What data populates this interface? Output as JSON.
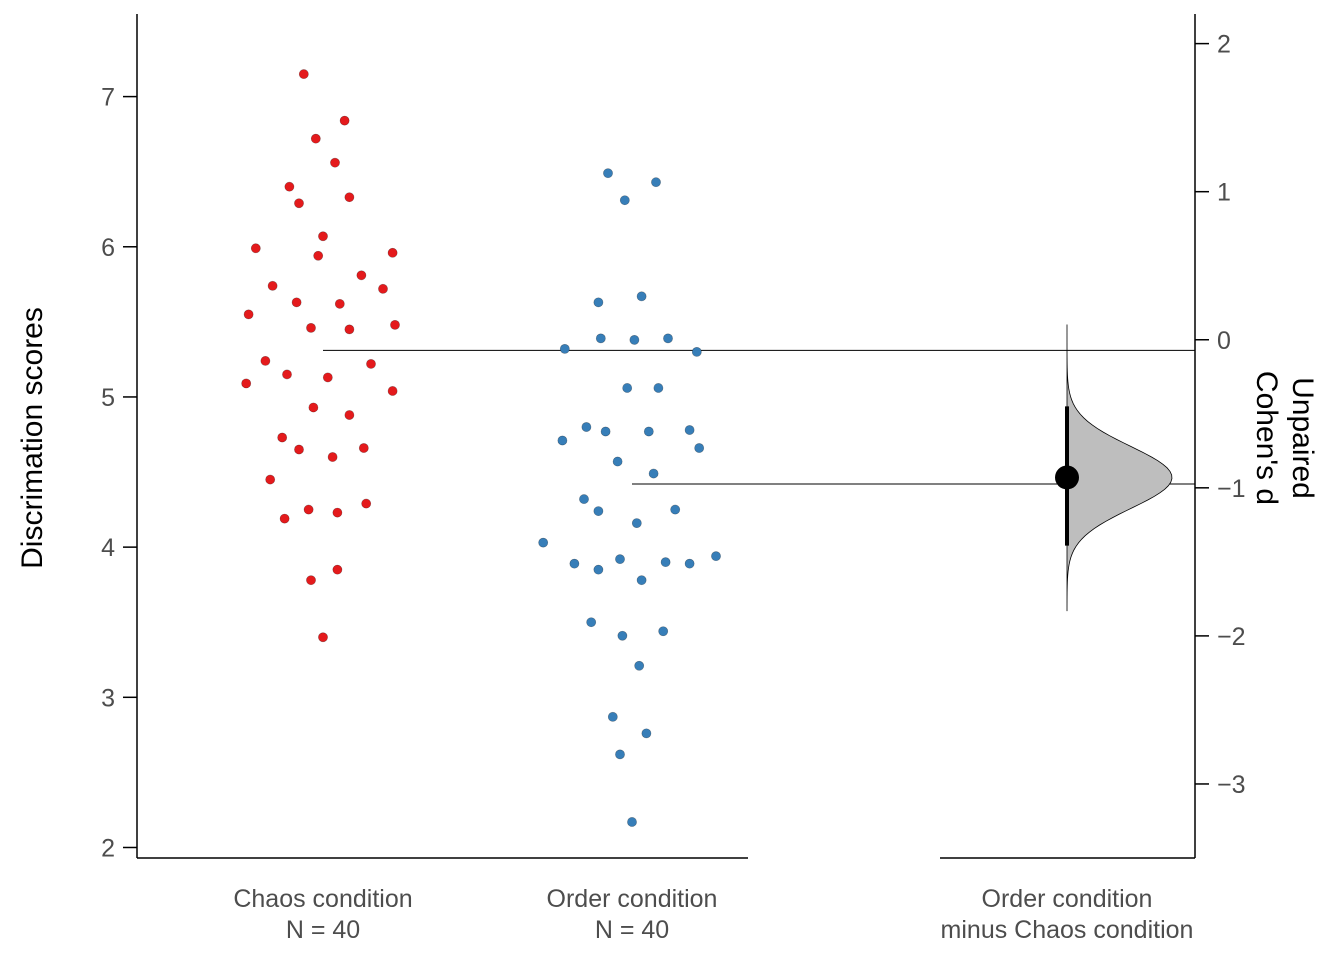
{
  "chart_data": {
    "type": "scatter",
    "subtype": "estimation-plot",
    "title": "",
    "ylabel": "Discrimation scores",
    "y2label": [
      "Unpaired",
      "Cohen's d"
    ],
    "ylim": [
      1.93,
      7.55
    ],
    "yticks": [
      2,
      3,
      4,
      5,
      6,
      7
    ],
    "y2lim": [
      -3.5,
      2.2
    ],
    "y2ticks": [
      -3,
      -2,
      -1,
      0,
      1,
      2
    ],
    "grid": false,
    "groups": [
      {
        "name": "Chaos condition",
        "n_label": "N = 40",
        "color": "#e41a1c",
        "mean": 5.31,
        "points": [
          {
            "dx": -0.08,
            "y": 7.15
          },
          {
            "dx": 0.09,
            "y": 6.84
          },
          {
            "dx": -0.03,
            "y": 6.72
          },
          {
            "dx": 0.05,
            "y": 6.56
          },
          {
            "dx": -0.14,
            "y": 6.4
          },
          {
            "dx": 0.11,
            "y": 6.33
          },
          {
            "dx": -0.1,
            "y": 6.29
          },
          {
            "dx": 0.0,
            "y": 6.07
          },
          {
            "dx": -0.28,
            "y": 5.99
          },
          {
            "dx": 0.29,
            "y": 5.96
          },
          {
            "dx": -0.02,
            "y": 5.94
          },
          {
            "dx": 0.16,
            "y": 5.81
          },
          {
            "dx": -0.21,
            "y": 5.74
          },
          {
            "dx": 0.25,
            "y": 5.72
          },
          {
            "dx": -0.11,
            "y": 5.63
          },
          {
            "dx": 0.07,
            "y": 5.62
          },
          {
            "dx": -0.31,
            "y": 5.55
          },
          {
            "dx": 0.3,
            "y": 5.48
          },
          {
            "dx": -0.05,
            "y": 5.46
          },
          {
            "dx": 0.11,
            "y": 5.45
          },
          {
            "dx": -0.24,
            "y": 5.24
          },
          {
            "dx": 0.2,
            "y": 5.22
          },
          {
            "dx": -0.15,
            "y": 5.15
          },
          {
            "dx": 0.02,
            "y": 5.13
          },
          {
            "dx": -0.32,
            "y": 5.09
          },
          {
            "dx": 0.29,
            "y": 5.04
          },
          {
            "dx": -0.04,
            "y": 4.93
          },
          {
            "dx": 0.11,
            "y": 4.88
          },
          {
            "dx": -0.17,
            "y": 4.73
          },
          {
            "dx": 0.17,
            "y": 4.66
          },
          {
            "dx": -0.1,
            "y": 4.65
          },
          {
            "dx": 0.04,
            "y": 4.6
          },
          {
            "dx": -0.22,
            "y": 4.45
          },
          {
            "dx": 0.18,
            "y": 4.29
          },
          {
            "dx": -0.06,
            "y": 4.25
          },
          {
            "dx": 0.06,
            "y": 4.23
          },
          {
            "dx": -0.16,
            "y": 4.19
          },
          {
            "dx": -0.05,
            "y": 3.78
          },
          {
            "dx": 0.06,
            "y": 3.85
          },
          {
            "dx": 0.0,
            "y": 3.4
          }
        ]
      },
      {
        "name": "Order condition",
        "n_label": "N = 40",
        "color": "#377eb8",
        "mean": 4.42,
        "points": [
          {
            "dx": -0.1,
            "y": 6.49
          },
          {
            "dx": 0.1,
            "y": 6.43
          },
          {
            "dx": -0.03,
            "y": 6.31
          },
          {
            "dx": 0.04,
            "y": 5.67
          },
          {
            "dx": -0.14,
            "y": 5.63
          },
          {
            "dx": -0.13,
            "y": 5.39
          },
          {
            "dx": 0.01,
            "y": 5.38
          },
          {
            "dx": 0.15,
            "y": 5.39
          },
          {
            "dx": -0.28,
            "y": 5.32
          },
          {
            "dx": 0.27,
            "y": 5.3
          },
          {
            "dx": -0.02,
            "y": 5.06
          },
          {
            "dx": 0.11,
            "y": 5.06
          },
          {
            "dx": -0.19,
            "y": 4.8
          },
          {
            "dx": -0.11,
            "y": 4.77
          },
          {
            "dx": 0.07,
            "y": 4.77
          },
          {
            "dx": 0.24,
            "y": 4.78
          },
          {
            "dx": -0.29,
            "y": 4.71
          },
          {
            "dx": 0.28,
            "y": 4.66
          },
          {
            "dx": -0.06,
            "y": 4.57
          },
          {
            "dx": 0.09,
            "y": 4.49
          },
          {
            "dx": -0.2,
            "y": 4.32
          },
          {
            "dx": 0.18,
            "y": 4.25
          },
          {
            "dx": -0.14,
            "y": 4.24
          },
          {
            "dx": 0.02,
            "y": 4.16
          },
          {
            "dx": -0.37,
            "y": 4.03
          },
          {
            "dx": 0.35,
            "y": 3.94
          },
          {
            "dx": -0.05,
            "y": 3.92
          },
          {
            "dx": 0.14,
            "y": 3.9
          },
          {
            "dx": 0.24,
            "y": 3.89
          },
          {
            "dx": -0.24,
            "y": 3.89
          },
          {
            "dx": -0.14,
            "y": 3.85
          },
          {
            "dx": 0.04,
            "y": 3.78
          },
          {
            "dx": -0.17,
            "y": 3.5
          },
          {
            "dx": 0.13,
            "y": 3.44
          },
          {
            "dx": -0.04,
            "y": 3.41
          },
          {
            "dx": 0.03,
            "y": 3.21
          },
          {
            "dx": -0.08,
            "y": 2.87
          },
          {
            "dx": 0.06,
            "y": 2.76
          },
          {
            "dx": -0.05,
            "y": 2.62
          },
          {
            "dx": 0.0,
            "y": 2.17
          }
        ]
      }
    ],
    "delta": {
      "name": "Order condition\nminus Chaos condition",
      "label_line1": "Order condition",
      "label_line2": "minus Chaos condition",
      "effect": -0.93,
      "ci": [
        -1.39,
        -0.45
      ],
      "distribution_sd": 0.21,
      "distribution_range": [
        -1.83,
        0.1
      ],
      "distribution_fill": "#bebebe"
    }
  }
}
